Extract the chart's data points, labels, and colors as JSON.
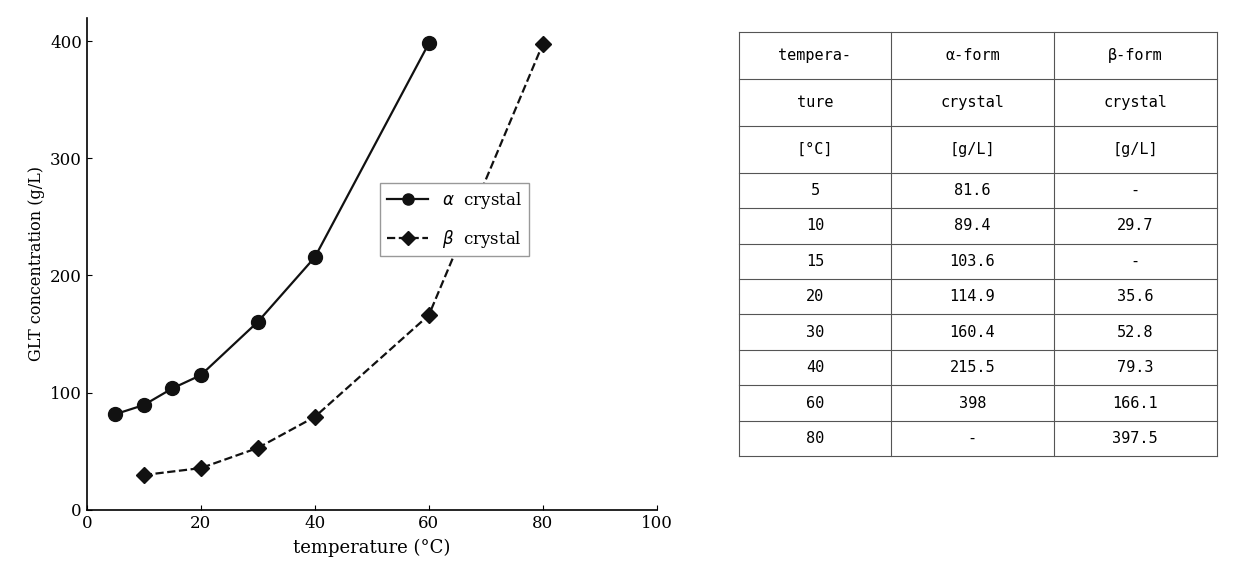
{
  "alpha_temp": [
    5,
    10,
    15,
    20,
    30,
    40,
    60
  ],
  "alpha_conc": [
    81.6,
    89.4,
    103.6,
    114.9,
    160.4,
    215.5,
    398.0
  ],
  "beta_temp": [
    10,
    20,
    30,
    40,
    60,
    80
  ],
  "beta_conc": [
    29.7,
    35.6,
    52.8,
    79.3,
    166.1,
    397.5
  ],
  "xlabel": "temperature (°C)",
  "ylabel": "GLT concentration (g/L)",
  "xlim": [
    0,
    100
  ],
  "ylim": [
    0,
    420
  ],
  "xticks": [
    0,
    20,
    40,
    60,
    80,
    100
  ],
  "yticks": [
    0,
    100,
    200,
    300,
    400
  ],
  "line_color": "#111111",
  "marker_color": "#111111",
  "table_header_row1": [
    "tempera-",
    "α-form",
    "β-form"
  ],
  "table_header_row2": [
    "ture",
    "crystal",
    "crystal"
  ],
  "table_header_row3": [
    "[°C]",
    "[g/L]",
    "[g/L]"
  ],
  "table_rows": [
    [
      "5",
      "81.6",
      "-"
    ],
    [
      "10",
      "89.4",
      "29.7"
    ],
    [
      "15",
      "103.6",
      "-"
    ],
    [
      "20",
      "114.9",
      "35.6"
    ],
    [
      "30",
      "160.4",
      "52.8"
    ],
    [
      "40",
      "215.5",
      "79.3"
    ],
    [
      "60",
      "398",
      "166.1"
    ],
    [
      "80",
      "-",
      "397.5"
    ]
  ]
}
